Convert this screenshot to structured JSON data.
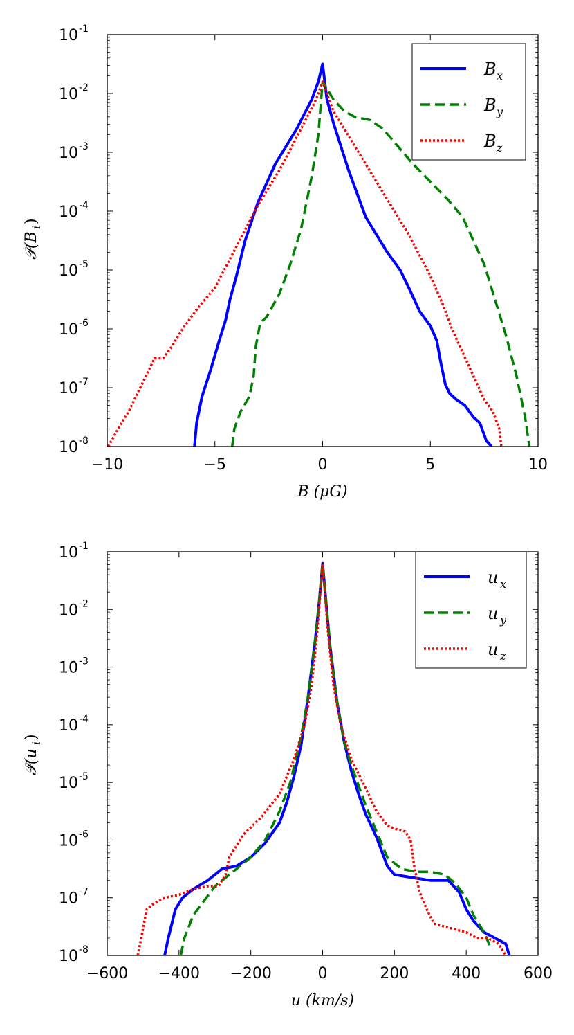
{
  "chart_data": [
    {
      "type": "line",
      "scale": "log-y",
      "xlabel": "B (μG)",
      "ylabel": "𝒫(B_i)",
      "ylabel_main": "𝒫(B",
      "ylabel_sub": "i",
      "ylabel_close": ")",
      "xlim": [
        -10,
        10
      ],
      "ylim_exp": [
        -8,
        -1
      ],
      "xticks": [
        -10,
        -5,
        0,
        5,
        10
      ],
      "xtick_labels": [
        "−10",
        "−5",
        "0",
        "5",
        "10"
      ],
      "ytick_exps": [
        -8,
        -7,
        -6,
        -5,
        -4,
        -3,
        -2,
        -1
      ],
      "ytick_base": "10",
      "ytick_exp_labels": [
        "-8",
        "-7",
        "-6",
        "-5",
        "-4",
        "-3",
        "-2",
        "-1"
      ],
      "legend_position": "top-right",
      "series": [
        {
          "name": "B_x",
          "label_main": "B",
          "label_sub": "x",
          "color": "#0000ff",
          "style": "solid",
          "x": [
            -5.95,
            -5.85,
            -5.6,
            -5.2,
            -4.8,
            -4.5,
            -4.3,
            -4.0,
            -3.6,
            -3.0,
            -2.2,
            -1.2,
            -0.5,
            -0.2,
            0.0,
            0.2,
            0.5,
            1.2,
            2.0,
            3.0,
            3.6,
            4.0,
            4.5,
            5.0,
            5.3,
            5.5,
            5.7,
            5.9,
            6.2,
            6.6,
            7.0,
            7.3,
            7.6,
            7.85
          ],
          "y_exp": [
            -8.0,
            -7.6,
            -7.15,
            -6.7,
            -6.2,
            -5.85,
            -5.5,
            -5.1,
            -4.5,
            -3.85,
            -3.2,
            -2.6,
            -2.1,
            -1.8,
            -1.5,
            -2.1,
            -2.5,
            -3.3,
            -4.1,
            -4.7,
            -5.0,
            -5.3,
            -5.7,
            -5.95,
            -6.2,
            -6.6,
            -6.95,
            -7.1,
            -7.2,
            -7.3,
            -7.5,
            -7.6,
            -7.9,
            -8.0
          ]
        },
        {
          "name": "B_y",
          "label_main": "B",
          "label_sub": "y",
          "color": "#008000",
          "style": "dashed",
          "x": [
            -4.2,
            -4.1,
            -3.8,
            -3.4,
            -3.2,
            -3.1,
            -2.9,
            -2.6,
            -2.0,
            -1.5,
            -1.0,
            -0.5,
            -0.2,
            0.0,
            0.5,
            1.0,
            1.5,
            2.2,
            2.8,
            3.5,
            4.2,
            5.0,
            5.8,
            6.5,
            7.0,
            7.5,
            8.0,
            8.5,
            9.0,
            9.4,
            9.6
          ],
          "y_exp": [
            -8.0,
            -7.7,
            -7.4,
            -7.15,
            -6.8,
            -6.3,
            -5.9,
            -5.8,
            -5.4,
            -4.9,
            -4.3,
            -3.4,
            -2.7,
            -1.8,
            -2.1,
            -2.3,
            -2.4,
            -2.45,
            -2.6,
            -2.9,
            -3.2,
            -3.5,
            -3.8,
            -4.1,
            -4.5,
            -4.9,
            -5.5,
            -6.1,
            -6.8,
            -7.5,
            -8.0
          ]
        },
        {
          "name": "B_z",
          "label_main": "B",
          "label_sub": "z",
          "color": "#ff0000",
          "style": "dotted",
          "x": [
            -9.95,
            -9.5,
            -9.0,
            -8.6,
            -8.2,
            -7.8,
            -7.4,
            -7.0,
            -6.5,
            -5.8,
            -5.0,
            -4.0,
            -3.0,
            -2.0,
            -1.0,
            -0.3,
            0.0,
            0.5,
            1.0,
            2.0,
            3.0,
            4.0,
            5.0,
            5.6,
            6.0,
            6.5,
            7.0,
            7.5,
            7.9,
            8.2,
            8.3
          ],
          "y_exp": [
            -8.0,
            -7.7,
            -7.4,
            -7.1,
            -6.8,
            -6.5,
            -6.5,
            -6.3,
            -6.0,
            -5.65,
            -5.3,
            -4.6,
            -3.9,
            -3.3,
            -2.6,
            -2.1,
            -1.8,
            -2.3,
            -2.6,
            -3.2,
            -3.8,
            -4.4,
            -5.1,
            -5.6,
            -6.0,
            -6.4,
            -6.8,
            -7.2,
            -7.4,
            -7.7,
            -8.0
          ]
        }
      ]
    },
    {
      "type": "line",
      "scale": "log-y",
      "xlabel": "u (km/s)",
      "ylabel": "𝒫(u_i)",
      "ylabel_main": "𝒫(u",
      "ylabel_sub": "i",
      "ylabel_close": ")",
      "xlim": [
        -600,
        600
      ],
      "ylim_exp": [
        -8,
        -1
      ],
      "xticks": [
        -600,
        -400,
        -200,
        0,
        200,
        400,
        600
      ],
      "xtick_labels": [
        "−600",
        "−400",
        "−200",
        "0",
        "200",
        "400",
        "600"
      ],
      "ytick_exps": [
        -8,
        -7,
        -6,
        -5,
        -4,
        -3,
        -2,
        -1
      ],
      "ytick_base": "10",
      "ytick_exp_labels": [
        "-8",
        "-7",
        "-6",
        "-5",
        "-4",
        "-3",
        "-2",
        "-1"
      ],
      "legend_position": "top-right",
      "series": [
        {
          "name": "u_x",
          "label_main": "u",
          "label_sub": "x",
          "color": "#0000ff",
          "style": "solid",
          "x": [
            -440,
            -430,
            -410,
            -390,
            -360,
            -320,
            -280,
            -240,
            -200,
            -160,
            -120,
            -100,
            -80,
            -60,
            -40,
            -20,
            -10,
            0,
            10,
            20,
            40,
            60,
            80,
            100,
            120,
            150,
            180,
            200,
            250,
            300,
            350,
            380,
            400,
            420,
            450,
            480,
            510,
            520
          ],
          "y_exp": [
            -8.0,
            -7.7,
            -7.2,
            -7.0,
            -6.85,
            -6.7,
            -6.5,
            -6.45,
            -6.3,
            -6.05,
            -5.7,
            -5.35,
            -4.9,
            -4.35,
            -3.5,
            -2.5,
            -1.9,
            -1.2,
            -1.9,
            -2.6,
            -3.6,
            -4.3,
            -4.8,
            -5.2,
            -5.55,
            -5.95,
            -6.45,
            -6.6,
            -6.65,
            -6.7,
            -6.7,
            -6.9,
            -7.2,
            -7.4,
            -7.6,
            -7.7,
            -7.8,
            -8.0
          ]
        },
        {
          "name": "u_y",
          "label_main": "u",
          "label_sub": "y",
          "color": "#008000",
          "style": "dashed",
          "x": [
            -395,
            -385,
            -360,
            -330,
            -300,
            -260,
            -230,
            -200,
            -160,
            -120,
            -90,
            -60,
            -40,
            -20,
            -10,
            0,
            10,
            20,
            40,
            60,
            80,
            100,
            120,
            150,
            180,
            220,
            260,
            300,
            340,
            370,
            400,
            420,
            450,
            470
          ],
          "y_exp": [
            -8.0,
            -7.7,
            -7.3,
            -7.05,
            -6.8,
            -6.6,
            -6.45,
            -6.3,
            -6.0,
            -5.5,
            -5.0,
            -4.2,
            -3.5,
            -2.5,
            -1.9,
            -1.2,
            -1.9,
            -2.6,
            -3.6,
            -4.3,
            -4.7,
            -5.05,
            -5.4,
            -5.85,
            -6.3,
            -6.5,
            -6.55,
            -6.55,
            -6.6,
            -6.75,
            -7.0,
            -7.3,
            -7.6,
            -7.9
          ]
        },
        {
          "name": "u_z",
          "label_main": "u",
          "label_sub": "z",
          "color": "#ff0000",
          "style": "dotted",
          "x": [
            -515,
            -505,
            -490,
            -470,
            -440,
            -400,
            -360,
            -320,
            -290,
            -270,
            -260,
            -220,
            -170,
            -120,
            -80,
            -50,
            -30,
            -15,
            0,
            15,
            30,
            50,
            80,
            120,
            150,
            180,
            200,
            230,
            245,
            255,
            270,
            290,
            310,
            340,
            370,
            400,
            430,
            460,
            490,
            510
          ],
          "y_exp": [
            -8.0,
            -7.7,
            -7.2,
            -7.1,
            -7.0,
            -6.95,
            -6.85,
            -6.8,
            -6.8,
            -6.6,
            -6.3,
            -5.9,
            -5.6,
            -5.2,
            -4.6,
            -4.0,
            -3.3,
            -2.4,
            -1.2,
            -2.4,
            -3.3,
            -4.0,
            -4.6,
            -5.1,
            -5.5,
            -5.75,
            -5.8,
            -5.85,
            -6.0,
            -6.45,
            -6.9,
            -7.2,
            -7.45,
            -7.5,
            -7.55,
            -7.6,
            -7.7,
            -7.7,
            -7.8,
            -8.0
          ]
        }
      ]
    }
  ]
}
